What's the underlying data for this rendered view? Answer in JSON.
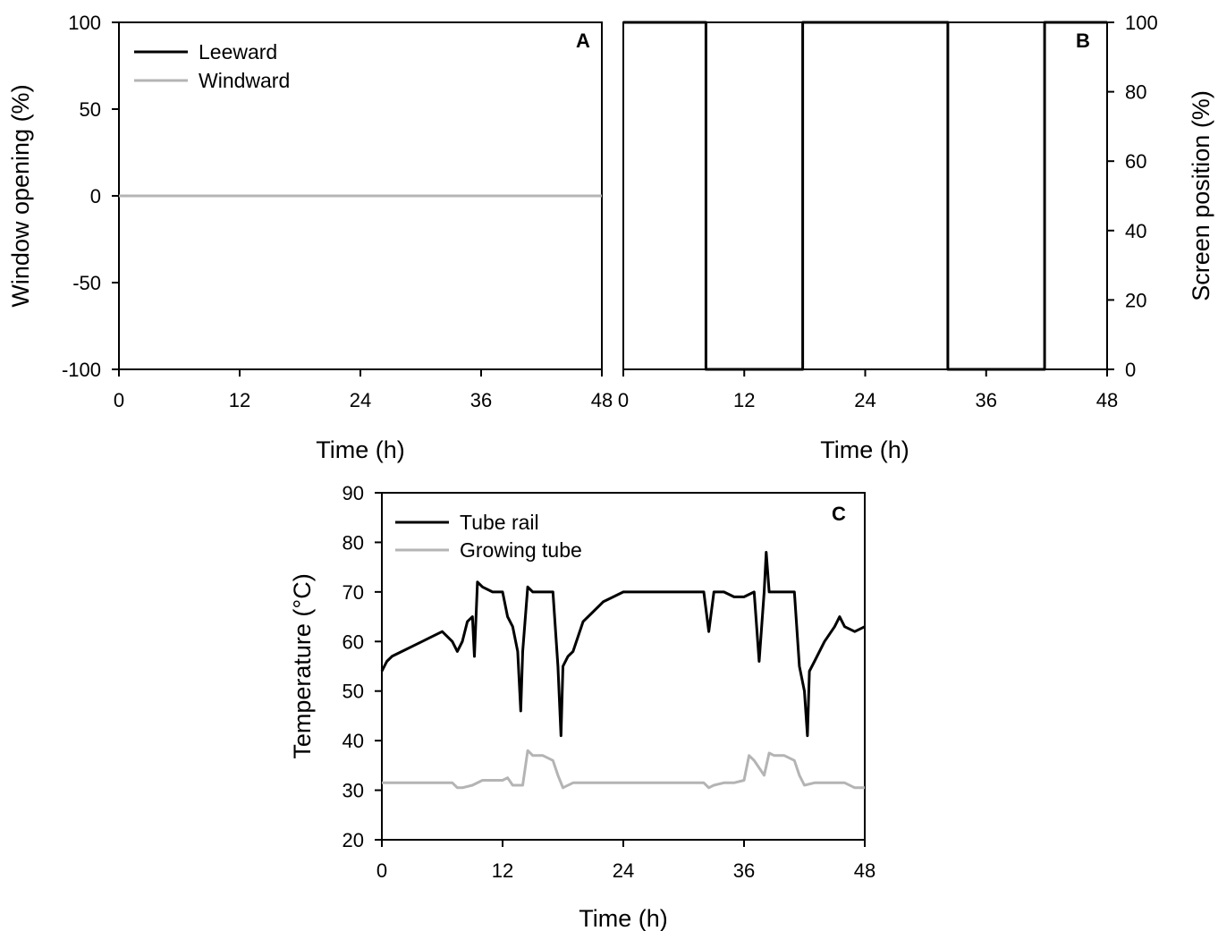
{
  "chart_data": [
    {
      "panel": "A",
      "type": "line",
      "xlabel": "Time (h)",
      "ylabel": "Window opening (%)",
      "xlim": [
        0,
        48
      ],
      "ylim": [
        -100,
        100
      ],
      "xticks": [
        0,
        12,
        24,
        36,
        48
      ],
      "yticks": [
        -100,
        -50,
        0,
        50,
        100
      ],
      "legend_position": "top-left",
      "series": [
        {
          "name": "Leeward",
          "color": "#000000",
          "x": [
            0,
            48
          ],
          "y": [
            0,
            0
          ]
        },
        {
          "name": "Windward",
          "color": "#b4b4b4",
          "x": [
            0,
            48
          ],
          "y": [
            0,
            0
          ]
        }
      ]
    },
    {
      "panel": "B",
      "type": "line",
      "xlabel": "Time (h)",
      "ylabel": "Screen position (%)",
      "xlim": [
        0,
        48
      ],
      "ylim": [
        0,
        100
      ],
      "xticks": [
        0,
        12,
        24,
        36,
        48
      ],
      "yticks": [
        0,
        20,
        40,
        60,
        80,
        100
      ],
      "y_axis_side": "right",
      "series": [
        {
          "color": "#000000",
          "x": [
            0,
            8.2,
            8.2,
            17.8,
            17.8,
            32.2,
            32.2,
            41.8,
            41.8,
            48
          ],
          "y": [
            100,
            100,
            0,
            0,
            100,
            100,
            0,
            0,
            100,
            100
          ]
        }
      ]
    },
    {
      "panel": "C",
      "type": "line",
      "xlabel": "Time (h)",
      "ylabel": "Temperature (°C)",
      "xlim": [
        0,
        48
      ],
      "ylim": [
        20,
        90
      ],
      "xticks": [
        0,
        12,
        24,
        36,
        48
      ],
      "yticks": [
        20,
        30,
        40,
        50,
        60,
        70,
        80,
        90
      ],
      "legend_position": "top-left",
      "series": [
        {
          "name": "Tube rail",
          "color": "#000000",
          "x": [
            0,
            0.5,
            1,
            2,
            3,
            4,
            5,
            6,
            6.5,
            7,
            7.5,
            8,
            8.5,
            9,
            9.2,
            9.5,
            10,
            11,
            12,
            12.5,
            13,
            13.5,
            13.8,
            14,
            14.5,
            15,
            16,
            17,
            17.5,
            17.8,
            18,
            18.5,
            19,
            20,
            21,
            22,
            23,
            24,
            26,
            28,
            30,
            32,
            32.5,
            33,
            33.5,
            34,
            35,
            36,
            37,
            37.5,
            38,
            38.2,
            38.5,
            39,
            40,
            41,
            41.5,
            42,
            42.3,
            42.5,
            43,
            44,
            45,
            45.5,
            46,
            47,
            48
          ],
          "y": [
            54,
            56,
            57,
            58,
            59,
            60,
            61,
            62,
            61,
            60,
            58,
            60,
            64,
            65,
            57,
            72,
            71,
            70,
            70,
            65,
            63,
            58,
            46,
            58,
            71,
            70,
            70,
            70,
            55,
            41,
            55,
            57,
            58,
            64,
            66,
            68,
            69,
            70,
            70,
            70,
            70,
            70,
            62,
            70,
            70,
            70,
            69,
            69,
            70,
            56,
            70,
            78,
            70,
            70,
            70,
            70,
            55,
            50,
            41,
            54,
            56,
            60,
            63,
            65,
            63,
            62,
            63
          ]
        },
        {
          "name": "Growing tube",
          "color": "#b4b4b4",
          "x": [
            0,
            2,
            4,
            6,
            7,
            7.5,
            8,
            9,
            10,
            11,
            12,
            12.5,
            13,
            14,
            14.5,
            15,
            16,
            17,
            17.5,
            18,
            19,
            20,
            22,
            24,
            26,
            28,
            30,
            32,
            32.5,
            33,
            34,
            35,
            36,
            36.5,
            37,
            38,
            38.5,
            39,
            40,
            41,
            41.5,
            42,
            43,
            44,
            46,
            47,
            48
          ],
          "y": [
            31.5,
            31.5,
            31.5,
            31.5,
            31.5,
            30.5,
            30.5,
            31,
            32,
            32,
            32,
            32.5,
            31,
            31,
            38,
            37,
            37,
            36,
            33,
            30.5,
            31.5,
            31.5,
            31.5,
            31.5,
            31.5,
            31.5,
            31.5,
            31.5,
            30.5,
            31,
            31.5,
            31.5,
            32,
            37,
            36,
            33,
            37.5,
            37,
            37,
            36,
            33,
            31,
            31.5,
            31.5,
            31.5,
            30.5,
            30.5
          ]
        }
      ]
    }
  ]
}
